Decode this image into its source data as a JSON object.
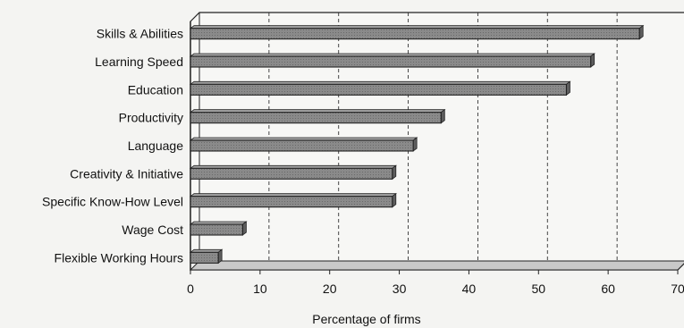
{
  "chart_data": {
    "type": "bar",
    "orientation": "horizontal",
    "categories": [
      "Skills & Abilities",
      "Learning Speed",
      "Education",
      "Productivity",
      "Language",
      "Creativity & Initiative",
      "Specific Know-How Level",
      "Wage Cost",
      "Flexible Working Hours"
    ],
    "values": [
      64.5,
      57.5,
      54,
      36,
      32,
      29,
      29,
      7.5,
      4
    ],
    "xlabel": "Percentage of firms",
    "ylabel": "",
    "xlim": [
      0,
      70
    ],
    "xticks": [
      "0",
      "10",
      "20",
      "30",
      "40",
      "50",
      "60",
      "70"
    ],
    "grid": "vertical-dashed",
    "legend": "none",
    "colors": {
      "bar": "#8a8a8a",
      "bar_edge": "#222222",
      "bar_top": "#a8a8a8",
      "grid": "#333333",
      "frame": "#222222",
      "floor": "#c9c9c9"
    }
  }
}
